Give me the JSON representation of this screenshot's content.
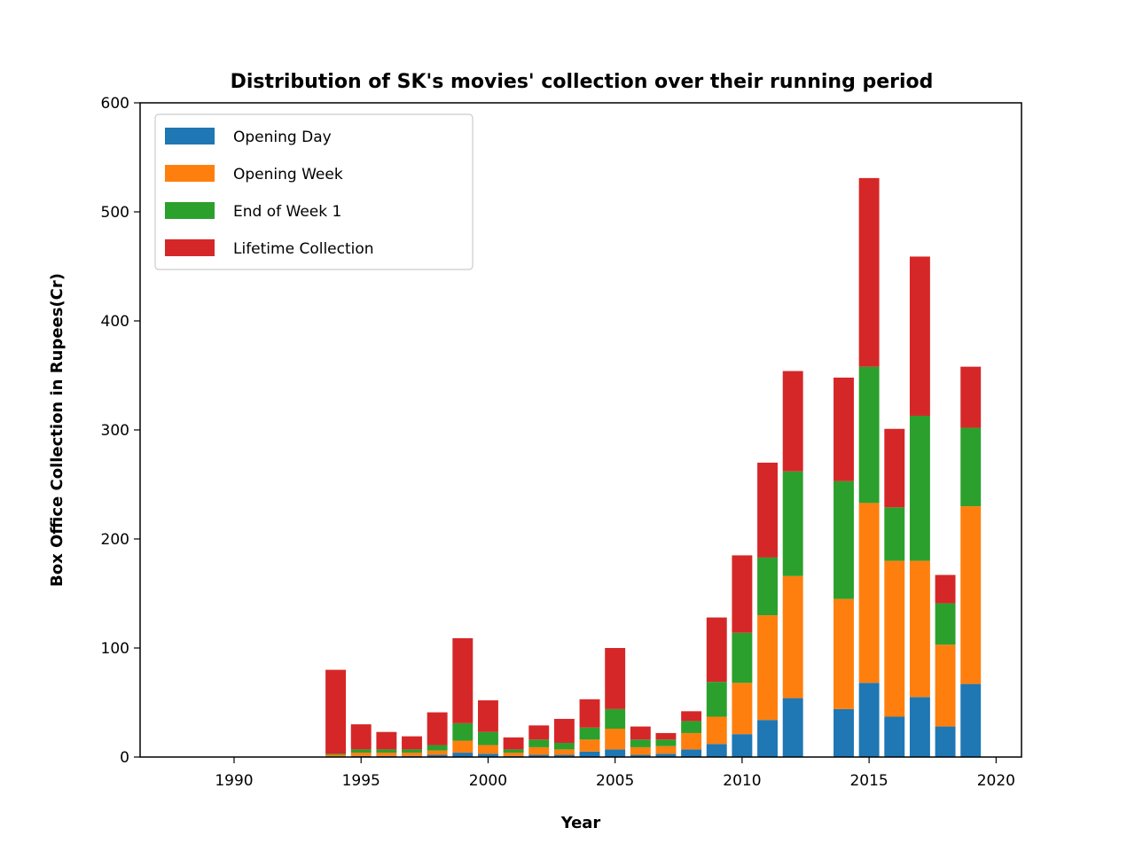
{
  "chart_data": {
    "type": "bar",
    "stacked": true,
    "title": "Distribution of SK's movies' collection over their running period",
    "xlabel": "Year",
    "ylabel": "Box Office Collection in Rupees(Cr)",
    "xlim": [
      1986.3,
      2021.0
    ],
    "ylim": [
      0,
      600
    ],
    "x_ticks": [
      1990,
      1995,
      2000,
      2005,
      2010,
      2015,
      2020
    ],
    "y_ticks": [
      0,
      100,
      200,
      300,
      400,
      500,
      600
    ],
    "legend_position": "upper-left",
    "grid": false,
    "x": [
      1994,
      1995,
      1996,
      1997,
      1998,
      1999,
      2000,
      2001,
      2002,
      2003,
      2004,
      2005,
      2006,
      2007,
      2008,
      2009,
      2010,
      2011,
      2012,
      2014,
      2015,
      2016,
      2017,
      2018,
      2019
    ],
    "series": [
      {
        "name": "Opening Day",
        "color": "#1f77b4",
        "values": [
          0.5,
          1,
          1,
          1,
          2,
          4,
          3,
          1,
          2,
          2,
          5,
          7,
          2,
          3,
          7,
          12,
          21,
          34,
          54,
          44,
          68,
          37,
          55,
          28,
          67
        ]
      },
      {
        "name": "Opening Week",
        "color": "#ff7f0e",
        "values": [
          1.5,
          3,
          3,
          3,
          4,
          11,
          8,
          3,
          7,
          5,
          11,
          19,
          7,
          7,
          15,
          25,
          47,
          96,
          112,
          101,
          165,
          143,
          125,
          75,
          163
        ]
      },
      {
        "name": "End of Week 1",
        "color": "#2ca02c",
        "values": [
          1,
          3,
          3,
          3,
          5,
          16,
          12,
          3,
          7,
          6,
          11,
          18,
          7,
          6,
          11,
          32,
          46,
          53,
          96,
          108,
          125,
          49,
          133,
          38,
          72
        ]
      },
      {
        "name": "Lifetime Collection",
        "color": "#d62728",
        "values": [
          77,
          23,
          16,
          12,
          30,
          78,
          29,
          11,
          13,
          22,
          26,
          56,
          12,
          6,
          9,
          59,
          71,
          87,
          92,
          95,
          173,
          72,
          146,
          26,
          56
        ]
      }
    ]
  }
}
